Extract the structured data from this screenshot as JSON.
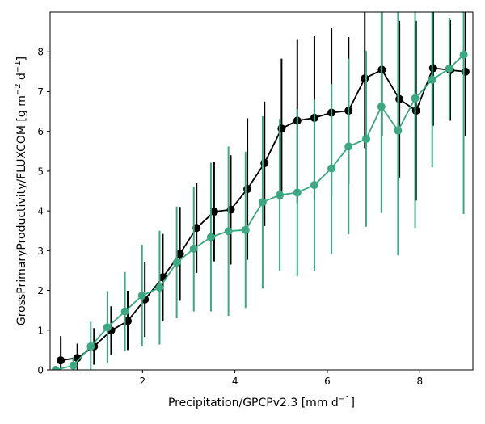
{
  "chart_data": {
    "type": "line",
    "xlabel": "Precipitation/GPCPv2.3 [mm d",
    "xlabel_sup": "−1",
    "xlabel_end": "]",
    "ylabel": "GrossPrimaryProductivity/FLUXCOM [g m",
    "ylabel_sup1": "−2",
    "ylabel_mid": " d",
    "ylabel_sup2": "−1",
    "ylabel_end": "]",
    "xlim": [
      0,
      9.15
    ],
    "ylim": [
      0,
      9.0
    ],
    "xticks": [
      2,
      4,
      6,
      8
    ],
    "yticks": [
      0,
      1,
      2,
      3,
      4,
      5,
      6,
      7,
      8
    ],
    "xtick_labels": [
      "2",
      "4",
      "6",
      "8"
    ],
    "ytick_labels": [
      "0",
      "1",
      "2",
      "3",
      "4",
      "5",
      "6",
      "7",
      "8"
    ],
    "grid": false,
    "legend": "none",
    "series": [
      {
        "color": "#000000",
        "points": [
          {
            "x": 0.23,
            "y": 0.24,
            "lo": 0.0,
            "hi": 0.85
          },
          {
            "x": 0.59,
            "y": 0.3,
            "lo": 0.0,
            "hi": 0.66
          },
          {
            "x": 0.95,
            "y": 0.59,
            "lo": 0.13,
            "hi": 1.05
          },
          {
            "x": 1.32,
            "y": 0.99,
            "lo": 0.38,
            "hi": 1.6
          },
          {
            "x": 1.68,
            "y": 1.23,
            "lo": 0.5,
            "hi": 1.99
          },
          {
            "x": 2.05,
            "y": 1.77,
            "lo": 0.83,
            "hi": 2.71
          },
          {
            "x": 2.44,
            "y": 2.33,
            "lo": 1.22,
            "hi": 3.42
          },
          {
            "x": 2.81,
            "y": 2.92,
            "lo": 1.74,
            "hi": 4.1
          },
          {
            "x": 3.17,
            "y": 3.57,
            "lo": 2.44,
            "hi": 4.7
          },
          {
            "x": 3.55,
            "y": 3.98,
            "lo": 2.73,
            "hi": 5.22
          },
          {
            "x": 3.91,
            "y": 4.03,
            "lo": 2.65,
            "hi": 5.4
          },
          {
            "x": 4.27,
            "y": 4.55,
            "lo": 2.77,
            "hi": 6.33
          },
          {
            "x": 4.64,
            "y": 5.2,
            "lo": 3.62,
            "hi": 6.75
          },
          {
            "x": 5.01,
            "y": 6.07,
            "lo": 4.31,
            "hi": 7.83
          },
          {
            "x": 5.35,
            "y": 6.27,
            "lo": 4.2,
            "hi": 8.32
          },
          {
            "x": 5.72,
            "y": 6.34,
            "lo": 4.29,
            "hi": 8.39
          },
          {
            "x": 6.09,
            "y": 6.47,
            "lo": 4.36,
            "hi": 8.59
          },
          {
            "x": 6.46,
            "y": 6.52,
            "lo": 4.67,
            "hi": 8.37
          },
          {
            "x": 6.81,
            "y": 7.33,
            "lo": 5.58,
            "hi": 9.08
          },
          {
            "x": 7.18,
            "y": 7.55,
            "lo": 5.89,
            "hi": 9.2
          },
          {
            "x": 7.56,
            "y": 6.81,
            "lo": 4.84,
            "hi": 8.78
          },
          {
            "x": 7.92,
            "y": 6.52,
            "lo": 4.26,
            "hi": 8.78
          },
          {
            "x": 8.29,
            "y": 7.59,
            "lo": 6.14,
            "hi": 9.04
          },
          {
            "x": 8.66,
            "y": 7.54,
            "lo": 6.27,
            "hi": 8.8
          },
          {
            "x": 8.99,
            "y": 7.5,
            "lo": 5.89,
            "hi": 9.11
          }
        ]
      },
      {
        "color": "#3aa981",
        "points": [
          {
            "x": 0.12,
            "y": 0.0,
            "lo": 0.0,
            "hi": 0.03
          },
          {
            "x": 0.5,
            "y": 0.11,
            "lo": 0.0,
            "hi": 0.32
          },
          {
            "x": 0.88,
            "y": 0.59,
            "lo": 0.0,
            "hi": 1.21
          },
          {
            "x": 1.24,
            "y": 1.07,
            "lo": 0.17,
            "hi": 1.98
          },
          {
            "x": 1.62,
            "y": 1.47,
            "lo": 0.47,
            "hi": 2.46
          },
          {
            "x": 1.99,
            "y": 1.87,
            "lo": 0.59,
            "hi": 3.15
          },
          {
            "x": 2.37,
            "y": 2.07,
            "lo": 0.64,
            "hi": 3.5
          },
          {
            "x": 2.74,
            "y": 2.7,
            "lo": 1.3,
            "hi": 4.11
          },
          {
            "x": 3.11,
            "y": 3.05,
            "lo": 1.47,
            "hi": 4.61
          },
          {
            "x": 3.48,
            "y": 3.34,
            "lo": 1.47,
            "hi": 5.21
          },
          {
            "x": 3.86,
            "y": 3.49,
            "lo": 1.36,
            "hi": 5.62
          },
          {
            "x": 4.23,
            "y": 3.52,
            "lo": 1.56,
            "hi": 5.49
          },
          {
            "x": 4.6,
            "y": 4.22,
            "lo": 2.05,
            "hi": 6.38
          },
          {
            "x": 4.97,
            "y": 4.4,
            "lo": 2.49,
            "hi": 6.31
          },
          {
            "x": 5.35,
            "y": 4.46,
            "lo": 2.36,
            "hi": 6.56
          },
          {
            "x": 5.72,
            "y": 4.65,
            "lo": 2.5,
            "hi": 6.8
          },
          {
            "x": 6.09,
            "y": 5.07,
            "lo": 2.92,
            "hi": 7.19
          },
          {
            "x": 6.46,
            "y": 5.62,
            "lo": 3.41,
            "hi": 7.83
          },
          {
            "x": 6.84,
            "y": 5.81,
            "lo": 3.6,
            "hi": 8.02
          },
          {
            "x": 7.17,
            "y": 6.62,
            "lo": 3.95,
            "hi": 9.28
          },
          {
            "x": 7.53,
            "y": 6.02,
            "lo": 2.88,
            "hi": 9.15
          },
          {
            "x": 7.9,
            "y": 6.83,
            "lo": 3.57,
            "hi": 10.08
          },
          {
            "x": 8.27,
            "y": 7.3,
            "lo": 5.1,
            "hi": 9.5
          },
          {
            "x": 8.64,
            "y": 7.58,
            "lo": 6.3,
            "hi": 8.86
          },
          {
            "x": 8.95,
            "y": 7.93,
            "lo": 3.92,
            "hi": 11.94
          }
        ]
      }
    ]
  }
}
